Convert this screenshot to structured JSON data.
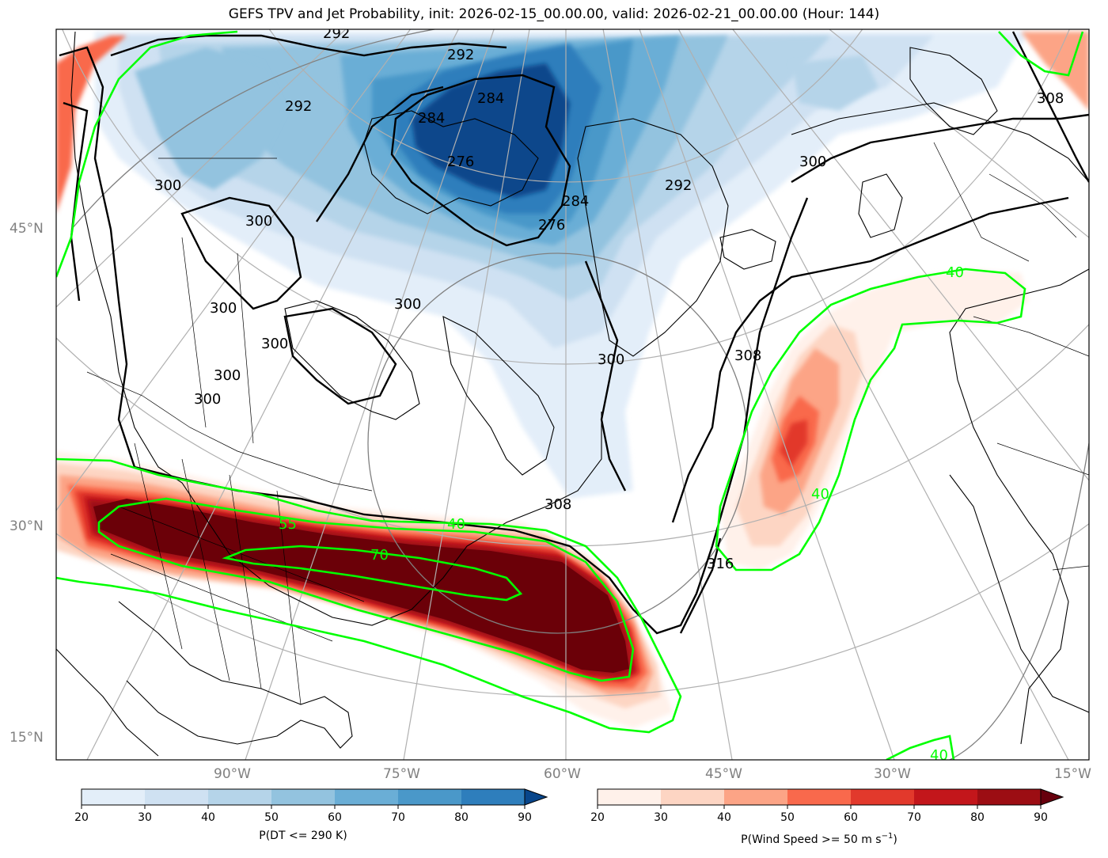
{
  "title": "GEFS TPV and Jet Probability, init: 2026-02-15_00.00.00, valid: 2026-02-21_00.00.00 (Hour: 144)",
  "map": {
    "lat_labels": [
      "45°N",
      "30°N",
      "15°N"
    ],
    "lon_labels": [
      "90°W",
      "75°W",
      "60°W",
      "45°W",
      "30°W",
      "15°W"
    ],
    "theta_contour_labels": [
      "292",
      "292",
      "292",
      "284",
      "284",
      "276",
      "284",
      "276",
      "292",
      "300",
      "300",
      "300",
      "300",
      "300",
      "300",
      "300",
      "300",
      "300",
      "308",
      "308",
      "308",
      "316"
    ],
    "jet_contour_labels": [
      "40",
      "40",
      "40",
      "40",
      "55",
      "70"
    ],
    "colors": {
      "theta_contour": "#000000",
      "jet_contour": "#00ff00",
      "coastline": "#000000",
      "graticule": "#b0b0b0"
    }
  },
  "colorbars": [
    {
      "name": "tpv-probability",
      "label": "P(DT <= 290 K)",
      "ticks": [
        "20",
        "30",
        "40",
        "50",
        "60",
        "70",
        "80",
        "90"
      ],
      "colors": [
        "#e3eef9",
        "#cfe1f2",
        "#b5d4e9",
        "#93c3df",
        "#6aaed6",
        "#4a98c9",
        "#2e7ebc",
        "#1764ab",
        "#08468b"
      ]
    },
    {
      "name": "jet-probability",
      "label": "P(Wind Speed >= 50 m s",
      "label_sup": "−1",
      "label_end": ")",
      "ticks": [
        "20",
        "30",
        "40",
        "50",
        "60",
        "70",
        "80",
        "90"
      ],
      "colors": [
        "#fff1ea",
        "#fdd5c3",
        "#fca486",
        "#f9694c",
        "#e2392c",
        "#c3161b",
        "#9c0d13",
        "#67000d"
      ]
    }
  ]
}
